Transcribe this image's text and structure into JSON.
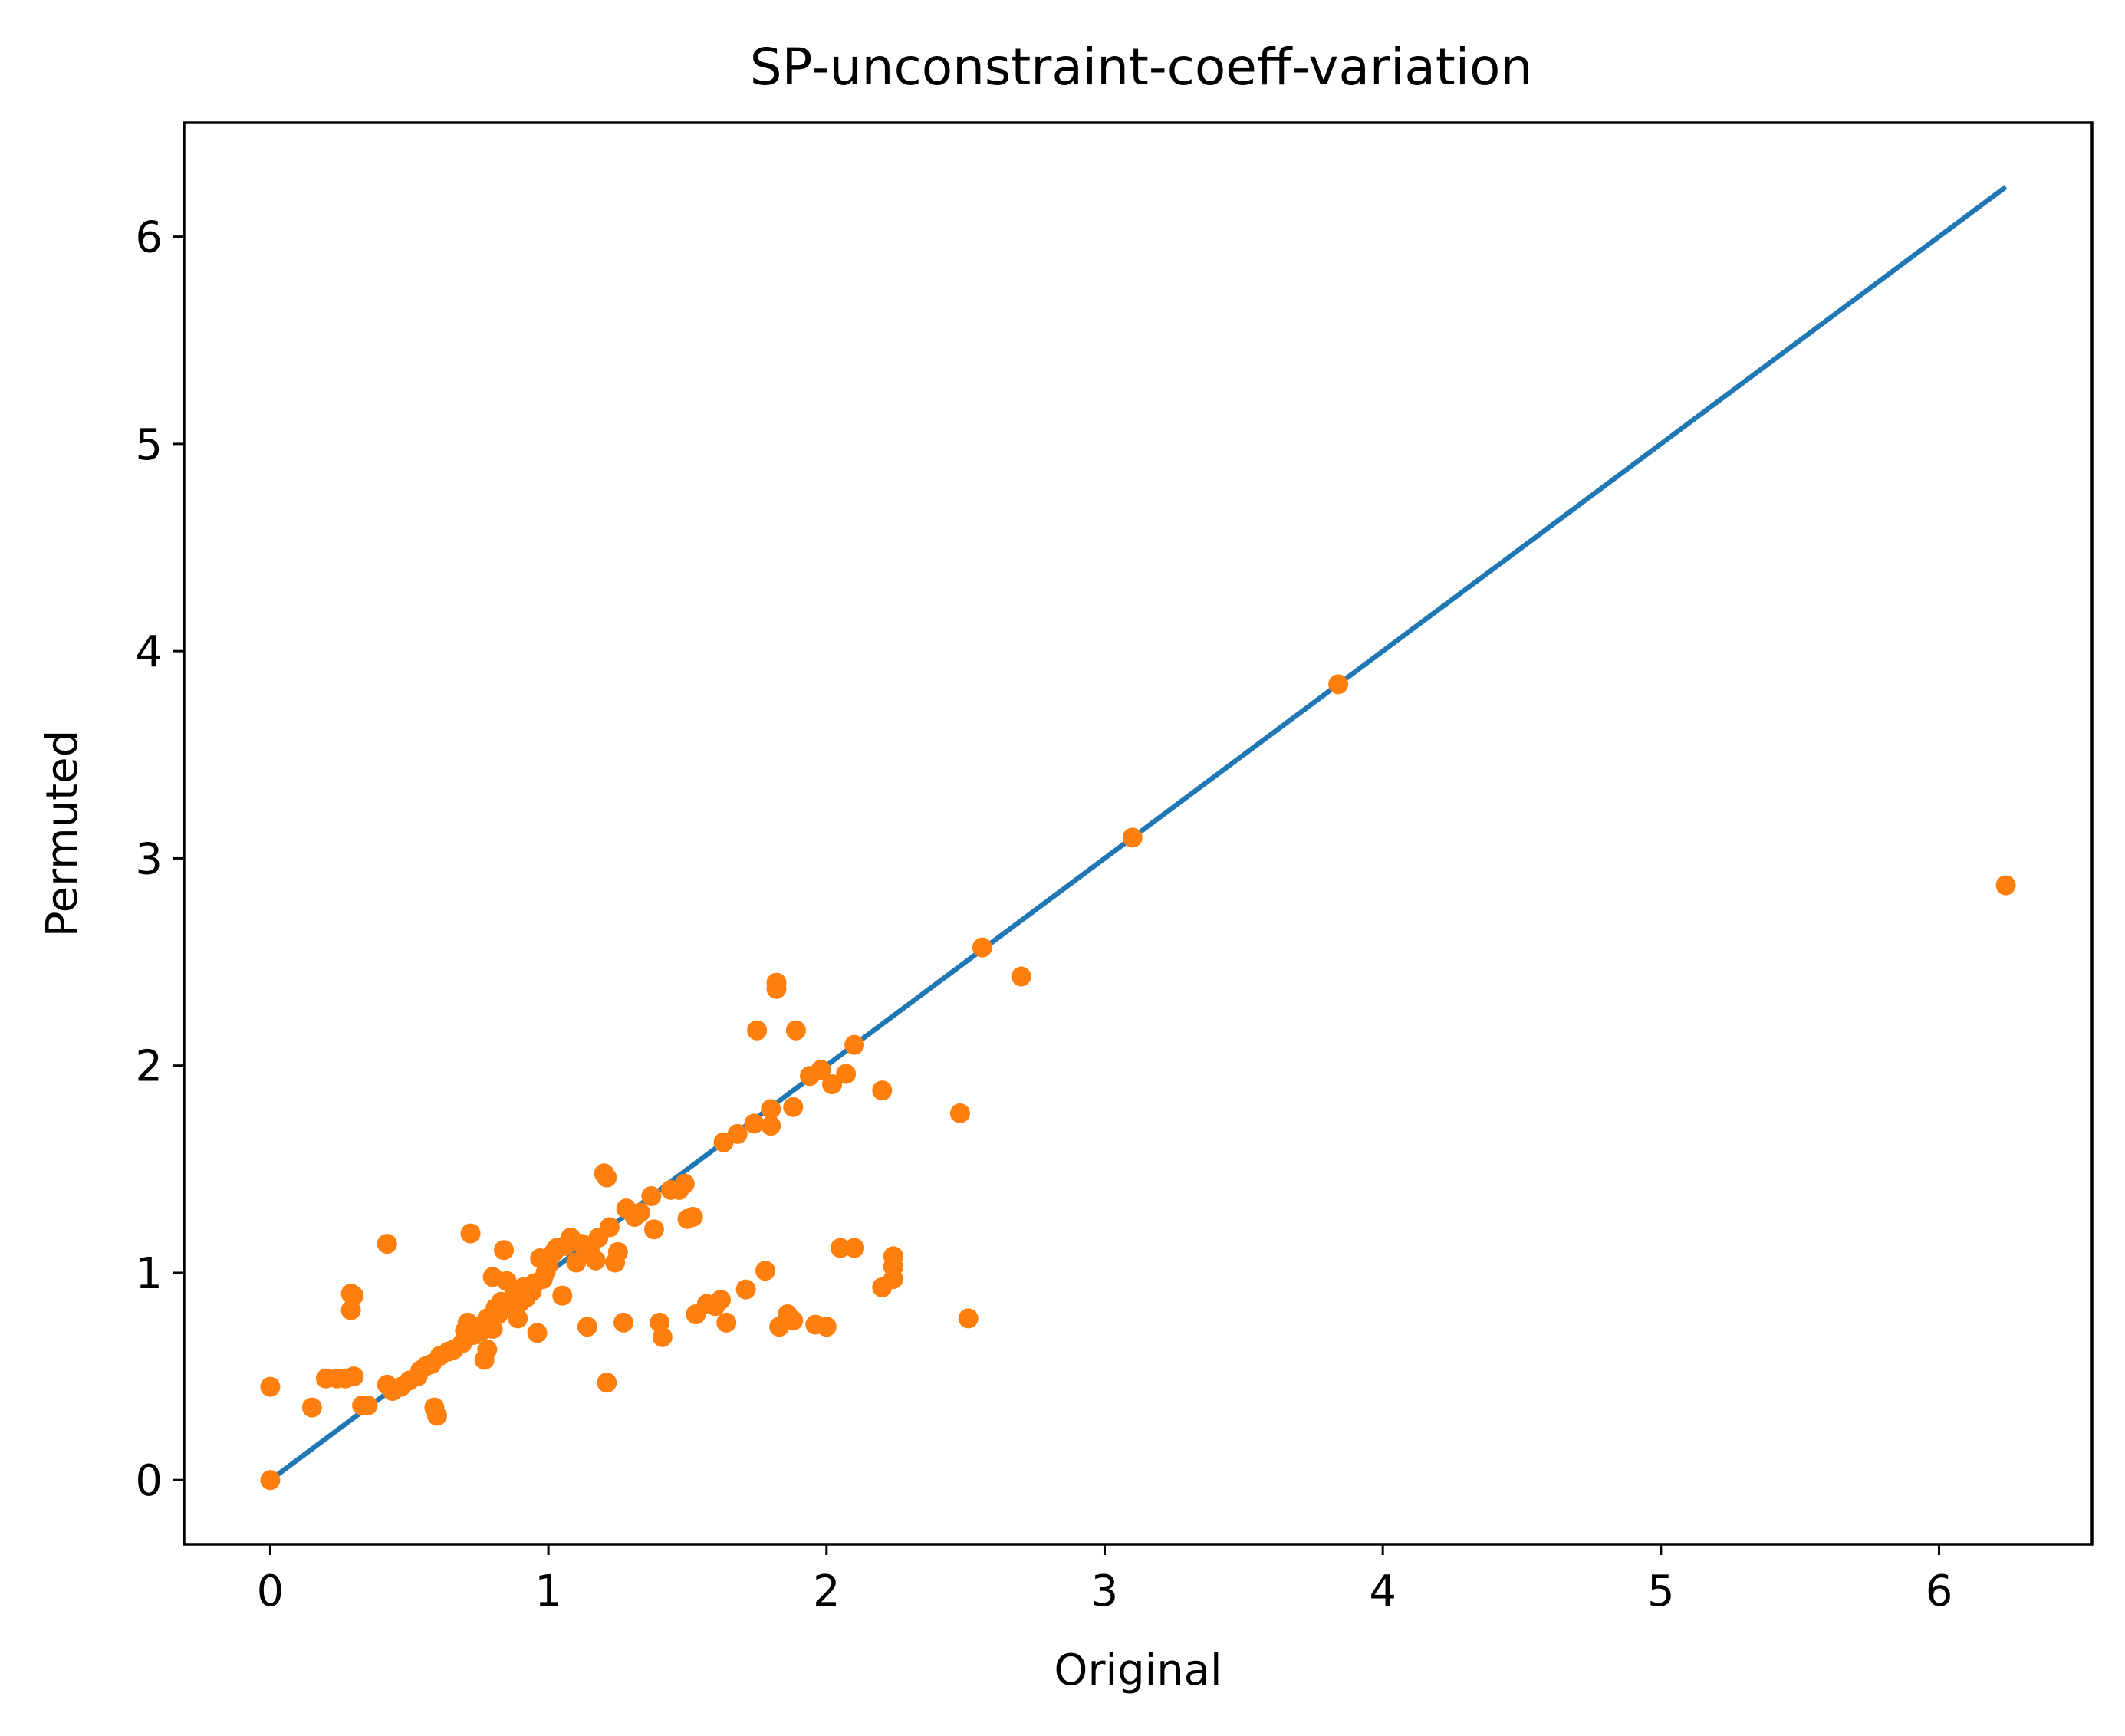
{
  "chart_data": {
    "type": "scatter",
    "title": "SP-unconstraint-coeff-variation",
    "xlabel": "Original",
    "ylabel": "Permuted",
    "xlim": [
      -0.31,
      6.55
    ],
    "ylim": [
      -0.31,
      6.55
    ],
    "xticks": [
      0,
      1,
      2,
      3,
      4,
      5,
      6
    ],
    "yticks": [
      0,
      1,
      2,
      3,
      4,
      5,
      6
    ],
    "grid": false,
    "legend": "none",
    "colors": {
      "line": "#1f77b4",
      "points": "#ff7f0e"
    },
    "line": {
      "x": [
        0,
        6.24
      ],
      "y": [
        0,
        6.24
      ]
    },
    "points": [
      [
        0.0,
        0.0
      ],
      [
        0.0,
        0.45
      ],
      [
        0.15,
        0.35
      ],
      [
        0.2,
        0.49
      ],
      [
        0.24,
        0.49
      ],
      [
        0.27,
        0.49
      ],
      [
        0.29,
        0.9
      ],
      [
        0.29,
        0.82
      ],
      [
        0.3,
        0.89
      ],
      [
        0.3,
        0.5
      ],
      [
        0.33,
        0.36
      ],
      [
        0.35,
        0.36
      ],
      [
        0.42,
        1.14
      ],
      [
        0.42,
        0.46
      ],
      [
        0.44,
        0.43
      ],
      [
        0.47,
        0.45
      ],
      [
        0.5,
        0.48
      ],
      [
        0.53,
        0.5
      ],
      [
        0.54,
        0.53
      ],
      [
        0.56,
        0.55
      ],
      [
        0.58,
        0.56
      ],
      [
        0.59,
        0.35
      ],
      [
        0.6,
        0.31
      ],
      [
        0.61,
        0.6
      ],
      [
        0.64,
        0.62
      ],
      [
        0.66,
        0.63
      ],
      [
        0.69,
        0.66
      ],
      [
        0.7,
        0.72
      ],
      [
        0.71,
        0.76
      ],
      [
        0.72,
        1.19
      ],
      [
        0.73,
        0.7
      ],
      [
        0.74,
        0.74
      ],
      [
        0.76,
        0.72
      ],
      [
        0.77,
        0.58
      ],
      [
        0.78,
        0.63
      ],
      [
        0.78,
        0.78
      ],
      [
        0.8,
        0.73
      ],
      [
        0.8,
        0.98
      ],
      [
        0.81,
        0.83
      ],
      [
        0.82,
        0.8
      ],
      [
        0.83,
        0.86
      ],
      [
        0.84,
        1.11
      ],
      [
        0.85,
        0.96
      ],
      [
        0.86,
        0.84
      ],
      [
        0.88,
        0.9
      ],
      [
        0.89,
        0.78
      ],
      [
        0.9,
        0.86
      ],
      [
        0.91,
        0.93
      ],
      [
        0.92,
        0.88
      ],
      [
        0.94,
        0.91
      ],
      [
        0.95,
        0.95
      ],
      [
        0.96,
        0.71
      ],
      [
        0.97,
        1.07
      ],
      [
        0.98,
        0.97
      ],
      [
        0.99,
        1.0
      ],
      [
        1.0,
        1.04
      ],
      [
        1.02,
        1.1
      ],
      [
        1.03,
        1.12
      ],
      [
        1.05,
        0.89
      ],
      [
        1.06,
        1.13
      ],
      [
        1.08,
        1.17
      ],
      [
        1.1,
        1.05
      ],
      [
        1.12,
        1.14
      ],
      [
        1.14,
        0.74
      ],
      [
        1.15,
        1.1
      ],
      [
        1.17,
        1.06
      ],
      [
        1.18,
        1.17
      ],
      [
        1.2,
        1.48
      ],
      [
        1.21,
        1.46
      ],
      [
        1.21,
        0.47
      ],
      [
        1.22,
        1.22
      ],
      [
        1.24,
        1.05
      ],
      [
        1.25,
        1.1
      ],
      [
        1.27,
        0.76
      ],
      [
        1.28,
        1.31
      ],
      [
        1.31,
        1.27
      ],
      [
        1.33,
        1.29
      ],
      [
        1.37,
        1.37
      ],
      [
        1.38,
        1.21
      ],
      [
        1.4,
        0.76
      ],
      [
        1.41,
        0.69
      ],
      [
        1.44,
        1.4
      ],
      [
        1.47,
        1.4
      ],
      [
        1.49,
        1.43
      ],
      [
        1.5,
        1.26
      ],
      [
        1.52,
        1.27
      ],
      [
        1.53,
        0.8
      ],
      [
        1.57,
        0.85
      ],
      [
        1.6,
        0.84
      ],
      [
        1.62,
        0.87
      ],
      [
        1.63,
        1.63
      ],
      [
        1.64,
        0.76
      ],
      [
        1.68,
        1.67
      ],
      [
        1.71,
        0.92
      ],
      [
        1.74,
        1.72
      ],
      [
        1.75,
        2.17
      ],
      [
        1.78,
        1.01
      ],
      [
        1.8,
        1.79
      ],
      [
        1.8,
        1.71
      ],
      [
        1.82,
        2.4
      ],
      [
        1.82,
        2.37
      ],
      [
        1.83,
        0.74
      ],
      [
        1.86,
        0.8
      ],
      [
        1.88,
        0.77
      ],
      [
        1.88,
        1.8
      ],
      [
        1.89,
        2.17
      ],
      [
        1.94,
        1.95
      ],
      [
        1.96,
        0.75
      ],
      [
        1.98,
        1.98
      ],
      [
        2.0,
        0.74
      ],
      [
        2.02,
        1.91
      ],
      [
        2.05,
        1.12
      ],
      [
        2.07,
        1.96
      ],
      [
        2.1,
        1.12
      ],
      [
        2.1,
        2.1
      ],
      [
        2.2,
        1.88
      ],
      [
        2.2,
        0.93
      ],
      [
        2.24,
        1.08
      ],
      [
        2.24,
        1.03
      ],
      [
        2.24,
        0.97
      ],
      [
        2.48,
        1.77
      ],
      [
        2.51,
        0.78
      ],
      [
        2.56,
        2.57
      ],
      [
        2.7,
        2.43
      ],
      [
        3.1,
        3.1
      ],
      [
        3.84,
        3.84
      ],
      [
        6.24,
        2.87
      ]
    ]
  }
}
